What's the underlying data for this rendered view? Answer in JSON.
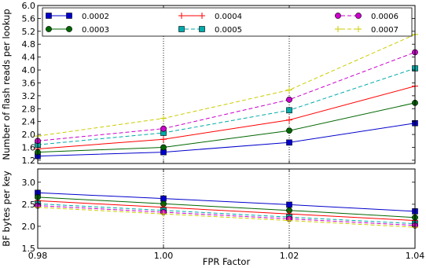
{
  "chart_data": [
    {
      "type": "line",
      "xlabel": "",
      "ylabel": "Number of flash reads per lookup",
      "xlim": [
        0.98,
        1.04
      ],
      "ylim": [
        1.1,
        6.0
      ],
      "x": [
        0.98,
        1.0,
        1.02,
        1.04
      ],
      "xticks": [],
      "yticks": [
        "1.2",
        "1.6",
        "2.0",
        "2.4",
        "2.8",
        "3.2",
        "3.6",
        "4.0",
        "4.4",
        "4.8",
        "5.2",
        "5.6",
        "6.0"
      ],
      "grid": "vertical dotted lines at x ticks",
      "legend_position": "top, inside plot, 3 columns",
      "series": [
        {
          "name": "0.0002",
          "color": "#0000cc",
          "linestyle": "solid",
          "marker": "square",
          "values": [
            1.33,
            1.45,
            1.75,
            2.35
          ]
        },
        {
          "name": "0.0003",
          "color": "#006600",
          "linestyle": "solid",
          "marker": "circle",
          "values": [
            1.45,
            1.6,
            2.12,
            2.98
          ]
        },
        {
          "name": "0.0004",
          "color": "#ff0000",
          "linestyle": "solid",
          "marker": "plus",
          "values": [
            1.55,
            1.85,
            2.45,
            3.5
          ]
        },
        {
          "name": "0.0005",
          "color": "#00aaaa",
          "linestyle": "dashed",
          "marker": "square",
          "values": [
            1.68,
            2.05,
            2.75,
            4.05
          ]
        },
        {
          "name": "0.0006",
          "color": "#cc00cc",
          "linestyle": "dashed",
          "marker": "circle",
          "values": [
            1.8,
            2.18,
            3.08,
            4.55
          ]
        },
        {
          "name": "0.0007",
          "color": "#cccc00",
          "linestyle": "dashed",
          "marker": "plus",
          "values": [
            1.95,
            2.5,
            3.38,
            5.1
          ]
        }
      ]
    },
    {
      "type": "line",
      "xlabel": "FPR Factor",
      "ylabel": "BF bytes per key",
      "xlim": [
        0.98,
        1.04
      ],
      "ylim": [
        1.5,
        3.3
      ],
      "x": [
        0.98,
        1.0,
        1.02,
        1.04
      ],
      "xticks": [
        "0.98",
        "1.00",
        "1.02",
        "1.04"
      ],
      "yticks": [
        "1.5",
        "2.0",
        "2.5",
        "3.0"
      ],
      "grid": "vertical dotted lines at x ticks",
      "series": [
        {
          "name": "0.0002",
          "color": "#0000cc",
          "linestyle": "solid",
          "marker": "square",
          "values": [
            2.76,
            2.63,
            2.49,
            2.34
          ]
        },
        {
          "name": "0.0003",
          "color": "#006600",
          "linestyle": "solid",
          "marker": "circle",
          "values": [
            2.66,
            2.51,
            2.36,
            2.2
          ]
        },
        {
          "name": "0.0004",
          "color": "#ff0000",
          "linestyle": "solid",
          "marker": "plus",
          "values": [
            2.58,
            2.43,
            2.28,
            2.13
          ]
        },
        {
          "name": "0.0005",
          "color": "#00aaaa",
          "linestyle": "dashed",
          "marker": "square",
          "values": [
            2.51,
            2.36,
            2.21,
            2.06
          ]
        },
        {
          "name": "0.0006",
          "color": "#cc00cc",
          "linestyle": "dashed",
          "marker": "circle",
          "values": [
            2.47,
            2.32,
            2.17,
            2.02
          ]
        },
        {
          "name": "0.0007",
          "color": "#cccc00",
          "linestyle": "dashed",
          "marker": "plus",
          "values": [
            2.43,
            2.28,
            2.13,
            1.98
          ]
        }
      ]
    }
  ]
}
